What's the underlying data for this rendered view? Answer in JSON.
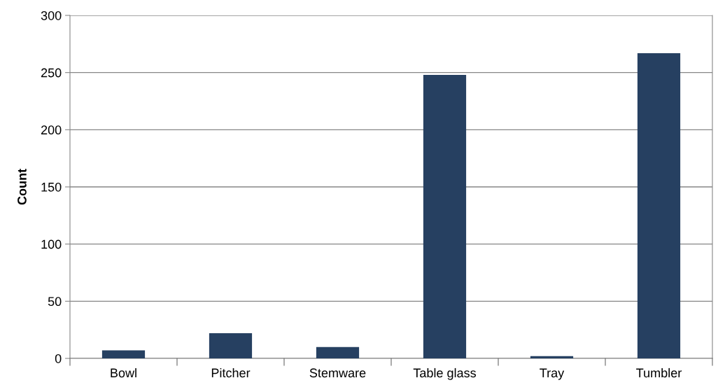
{
  "chart_data": {
    "type": "bar",
    "ylabel": "Count",
    "categories": [
      "Bowl",
      "Pitcher",
      "Stemware",
      "Table glass",
      "Tray",
      "Tumbler"
    ],
    "values": [
      7,
      22,
      10,
      248,
      2,
      267
    ],
    "color": "#264061",
    "ylim": [
      0,
      300
    ],
    "yticks": [
      0,
      50,
      100,
      150,
      200,
      250,
      300
    ],
    "grid": "y"
  }
}
